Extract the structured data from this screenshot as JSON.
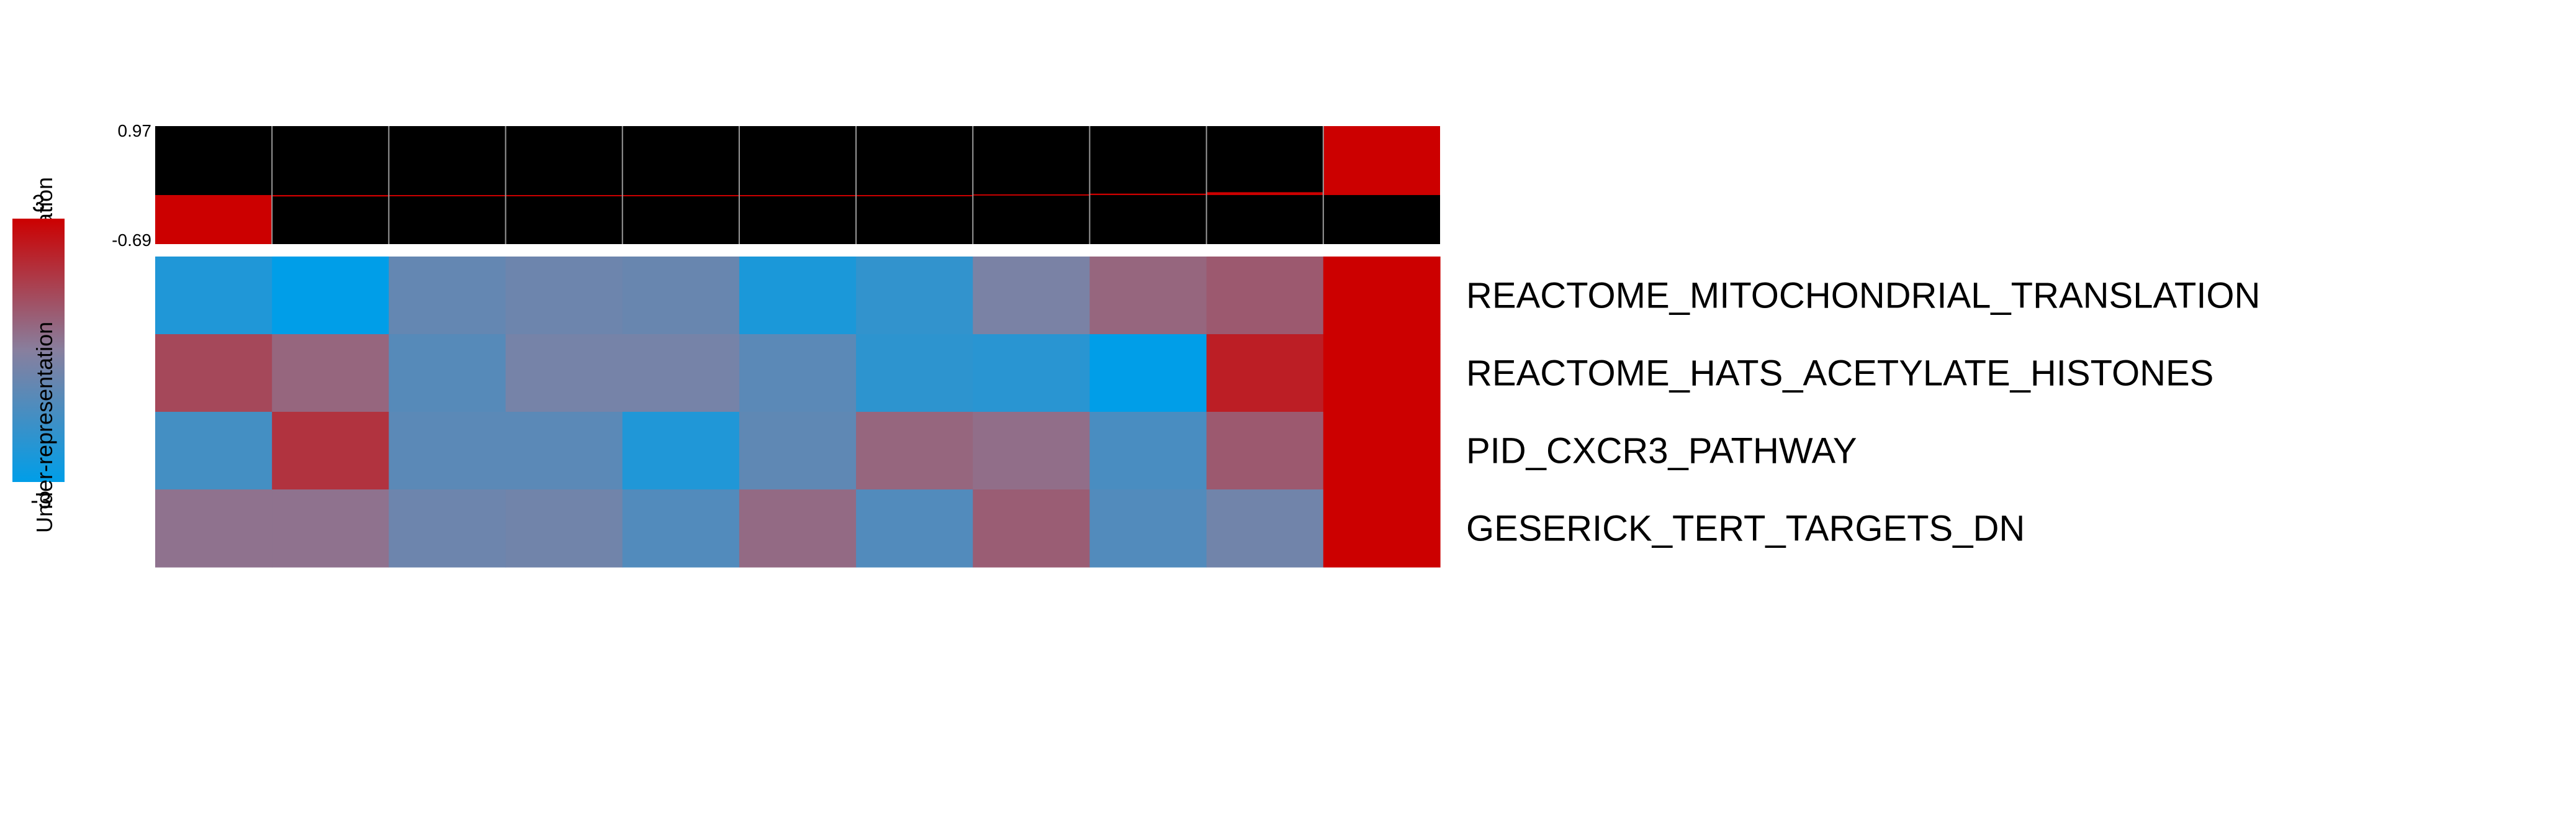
{
  "chart_data": {
    "type": "heatmap",
    "title": "",
    "rows": [
      "REACTOME_MITOCHONDRIAL_TRANSLATION",
      "REACTOME_HATS_ACETYLATE_HISTONES",
      "PID_CXCR3_PATHWAY",
      "GESERICK_TERT_TARGETS_DN"
    ],
    "n_columns": 11,
    "values": [
      [
        -2.3,
        -3.0,
        -0.8,
        -0.6,
        -0.7,
        -2.4,
        -1.9,
        -0.3,
        0.6,
        0.9,
        3.0
      ],
      [
        1.3,
        0.6,
        -1.1,
        -0.4,
        -0.4,
        -1.0,
        -2.0,
        -2.1,
        -3.0,
        2.3,
        3.0
      ],
      [
        -1.5,
        1.8,
        -1.0,
        -1.0,
        -2.3,
        -0.9,
        0.6,
        0.4,
        -1.4,
        0.9,
        3.0
      ],
      [
        0.3,
        0.3,
        -0.6,
        -0.5,
        -1.2,
        0.5,
        -1.2,
        0.8,
        -1.2,
        -0.5,
        3.0
      ]
    ],
    "color_scale": {
      "min": -3,
      "max": 3,
      "min_label": "-3",
      "max_label": "3",
      "low_color": "#009EE8",
      "mid_color": "#887F9E",
      "high_color": "#CC0000",
      "low_side_label": "Under-representation",
      "high_side_label": "Over-representation"
    },
    "top_bar": {
      "ymin_label": "-0.69",
      "ymax_label": "0.97",
      "ymin": -0.69,
      "ymax": 0.97,
      "values": [
        -0.69,
        -0.02,
        -0.01,
        0.0,
        0.0,
        0.0,
        0.0,
        0.01,
        0.02,
        0.04,
        0.97
      ],
      "fill_color": "#CC0000",
      "background_color": "#000000"
    }
  }
}
